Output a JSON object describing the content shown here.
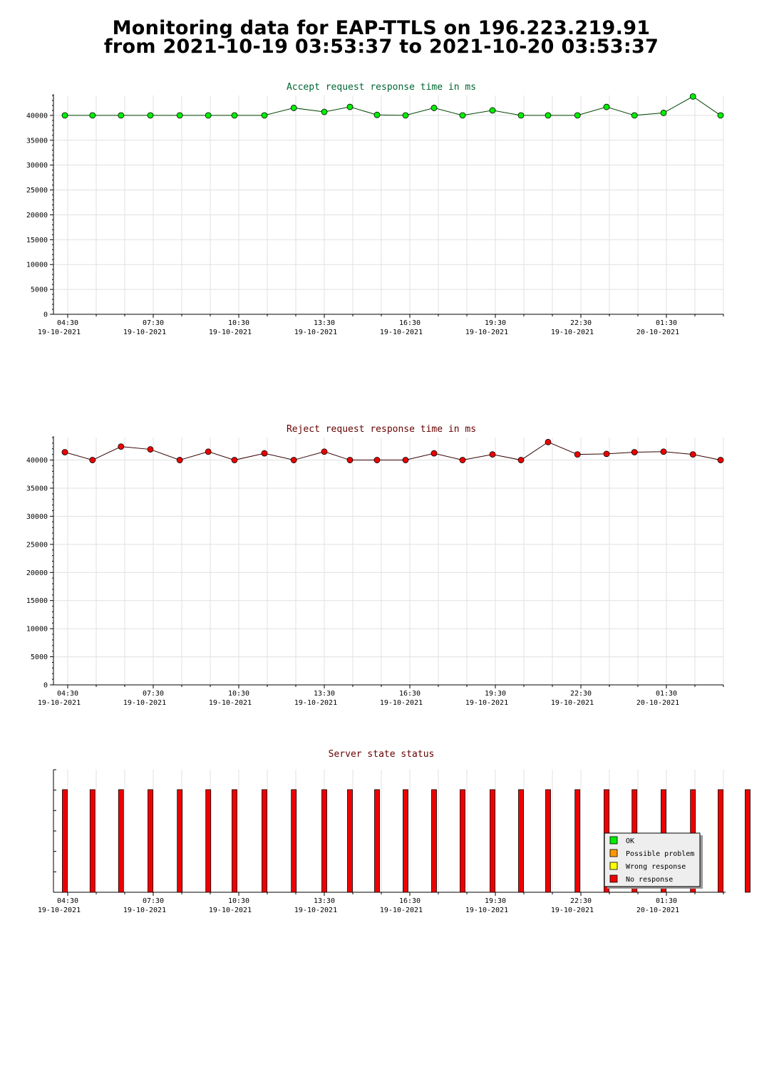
{
  "header": {
    "title_line1": "Monitoring data for EAP-TTLS on 196.223.219.91",
    "title_line2": "from 2021-10-19 03:53:37 to 2021-10-20 03:53:37"
  },
  "colors": {
    "accept_title": "#006633",
    "reject_title": "#660000",
    "status_title": "#660000",
    "accept_marker": "#00ee00",
    "reject_marker": "#ee0000",
    "accept_line": "#004400",
    "reject_line": "#330000",
    "grid": "#e0e0e0",
    "legend_bg": "#eeeeee",
    "ok": "#00ee00",
    "possible_problem": "#ff9900",
    "wrong_response": "#ffff00",
    "no_response": "#ee0000"
  },
  "x_ticks": [
    {
      "time": "04:30",
      "date": "19-10-2021"
    },
    {
      "time": "07:30",
      "date": "19-10-2021"
    },
    {
      "time": "10:30",
      "date": "19-10-2021"
    },
    {
      "time": "13:30",
      "date": "19-10-2021"
    },
    {
      "time": "16:30",
      "date": "19-10-2021"
    },
    {
      "time": "19:30",
      "date": "19-10-2021"
    },
    {
      "time": "22:30",
      "date": "19-10-2021"
    },
    {
      "time": "01:30",
      "date": "20-10-2021"
    }
  ],
  "chart_data": [
    {
      "type": "line",
      "title": "Accept request response time in ms",
      "xlabel": "",
      "ylabel": "",
      "ylim": [
        0,
        44000
      ],
      "y_ticks": [
        0,
        5000,
        10000,
        15000,
        20000,
        25000,
        30000,
        35000,
        40000
      ],
      "grid": true,
      "x_hours_since_0400": [
        0.4,
        1.37,
        2.37,
        3.4,
        4.43,
        5.43,
        6.35,
        7.4,
        8.43,
        9.5,
        10.4,
        11.35,
        12.35,
        13.35,
        14.35,
        15.4,
        16.4,
        17.35,
        18.38,
        19.4,
        20.38,
        21.4,
        22.43,
        23.4
      ],
      "values": [
        40000,
        40000,
        40000,
        40000,
        40000,
        40000,
        40000,
        40000,
        41500,
        40700,
        41700,
        40100,
        40000,
        41500,
        40000,
        41000,
        40000,
        40000,
        40000,
        41700,
        40000,
        40500,
        43800,
        40000
      ]
    },
    {
      "type": "line",
      "title": "Reject request response time in ms",
      "xlabel": "",
      "ylabel": "",
      "ylim": [
        0,
        44000
      ],
      "y_ticks": [
        0,
        5000,
        10000,
        15000,
        20000,
        25000,
        30000,
        35000,
        40000
      ],
      "grid": true,
      "x_hours_since_0400": [
        0.4,
        1.37,
        2.37,
        3.4,
        4.43,
        5.43,
        6.35,
        7.4,
        8.43,
        9.5,
        10.4,
        11.35,
        12.35,
        13.35,
        14.35,
        15.4,
        16.4,
        17.35,
        18.38,
        19.4,
        20.38,
        21.4,
        22.43,
        23.4
      ],
      "values": [
        41400,
        40000,
        42400,
        41900,
        40000,
        41500,
        40000,
        41200,
        40000,
        41500,
        40000,
        40000,
        40000,
        41200,
        40000,
        41000,
        40000,
        43200,
        41000,
        41100,
        41400,
        41500,
        41000,
        40000
      ]
    },
    {
      "type": "bar",
      "title": "Server state status",
      "x_hours_since_0400": [
        0.4,
        1.37,
        2.37,
        3.4,
        4.43,
        5.43,
        6.35,
        7.4,
        8.43,
        9.5,
        10.4,
        11.35,
        12.35,
        13.35,
        14.35,
        15.4,
        16.4,
        17.35,
        18.38,
        19.4,
        20.38,
        21.4,
        22.43,
        23.4,
        24.35
      ],
      "states": [
        "No response",
        "No response",
        "No response",
        "No response",
        "No response",
        "No response",
        "No response",
        "No response",
        "No response",
        "No response",
        "No response",
        "No response",
        "No response",
        "No response",
        "No response",
        "No response",
        "No response",
        "No response",
        "No response",
        "No response",
        "No response",
        "No response",
        "No response",
        "No response",
        "No response"
      ],
      "legend": [
        "OK",
        "Possible problem",
        "Wrong response",
        "No response"
      ],
      "legend_position": "bottom-right"
    }
  ]
}
